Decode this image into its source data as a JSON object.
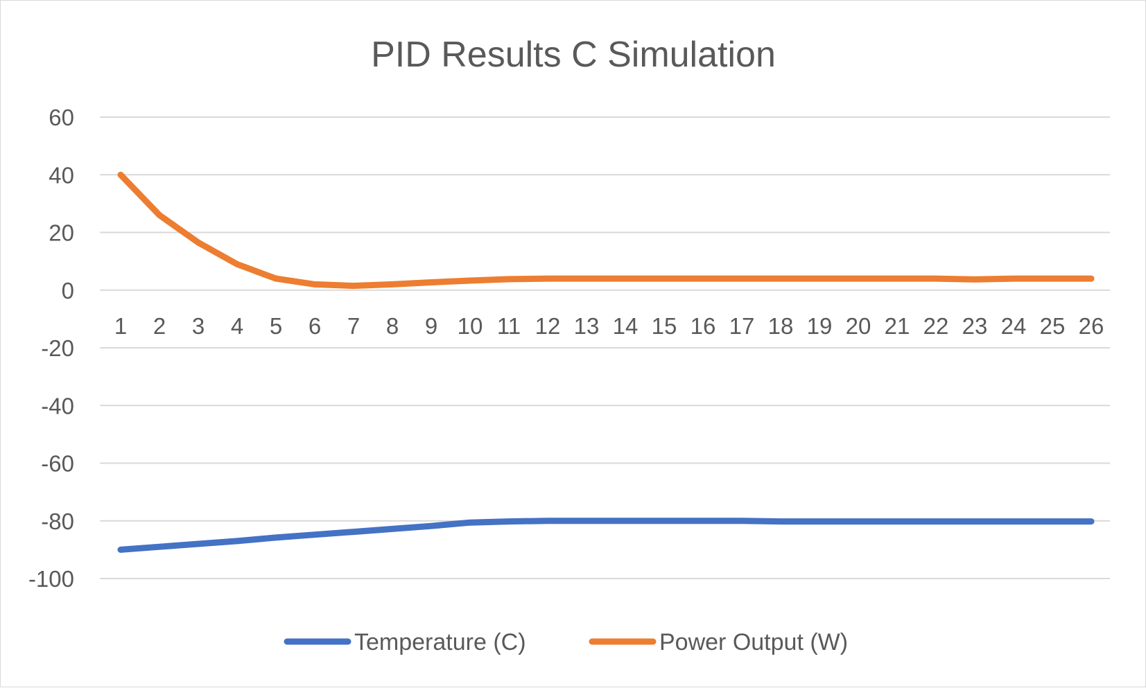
{
  "chart_data": {
    "type": "line",
    "title": "PID Results C Simulation",
    "xlabel": "",
    "ylabel": "",
    "categories": [
      "1",
      "2",
      "3",
      "4",
      "5",
      "6",
      "7",
      "8",
      "9",
      "10",
      "11",
      "12",
      "13",
      "14",
      "15",
      "16",
      "17",
      "18",
      "19",
      "20",
      "21",
      "22",
      "23",
      "24",
      "25",
      "26"
    ],
    "ylim": [
      -100,
      60
    ],
    "yticks": [
      "60",
      "40",
      "20",
      "0",
      "-20",
      "-40",
      "-60",
      "-80",
      "-100"
    ],
    "grid": true,
    "legend_position": "bottom",
    "series": [
      {
        "name": "Temperature (C)",
        "color": "#4472c4",
        "values": [
          -90,
          -89,
          -88,
          -87,
          -85.8,
          -84.8,
          -83.8,
          -82.8,
          -81.8,
          -80.6,
          -80.2,
          -80,
          -80,
          -80,
          -80,
          -80,
          -80,
          -80.2,
          -80.2,
          -80.2,
          -80.2,
          -80.2,
          -80.2,
          -80.2,
          -80.2,
          -80.2
        ]
      },
      {
        "name": "Power Output (W)",
        "color": "#ed7d31",
        "values": [
          40,
          26,
          16.5,
          9,
          4,
          2,
          1.5,
          2,
          2.7,
          3.3,
          3.8,
          4,
          4,
          4,
          4,
          4,
          4,
          4,
          4,
          4,
          4,
          4,
          3.7,
          4,
          4,
          4
        ]
      }
    ]
  }
}
